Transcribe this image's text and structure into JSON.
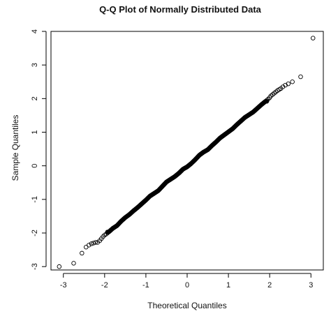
{
  "chart_data": {
    "type": "scatter",
    "title": "Q-Q Plot of Normally Distributed Data",
    "xlabel": "Theoretical Quantiles",
    "ylabel": "Sample Quantiles",
    "xlim": [
      -3.3,
      3.3
    ],
    "ylim": [
      -3.1,
      4.0
    ],
    "xticks": [
      -3,
      -2,
      -1,
      0,
      1,
      2,
      3
    ],
    "yticks": [
      -3,
      -2,
      -1,
      0,
      1,
      2,
      3,
      4
    ],
    "xtick_labels": [
      "-3",
      "-2",
      "-1",
      "0",
      "1",
      "2",
      "3"
    ],
    "ytick_labels": [
      "-3",
      "-2",
      "-1",
      "0",
      "1",
      "2",
      "3",
      "4"
    ],
    "grid": false,
    "legend": "none",
    "marker": "open-circle",
    "colors": {
      "marker": "#000000",
      "axis": "#000000",
      "background": "#ffffff"
    },
    "tail_points": [
      [
        -3.1,
        -3.0
      ],
      [
        -2.75,
        -2.9
      ],
      [
        -2.55,
        -2.6
      ],
      [
        -2.45,
        -2.42
      ],
      [
        -2.38,
        -2.36
      ],
      [
        -2.32,
        -2.32
      ],
      [
        -2.27,
        -2.3
      ],
      [
        -2.22,
        -2.28
      ],
      [
        -2.17,
        -2.28
      ],
      [
        -2.12,
        -2.23
      ],
      [
        -2.08,
        -2.17
      ],
      [
        -2.04,
        -2.11
      ],
      [
        -2.0,
        -2.06
      ],
      [
        -1.96,
        -2.03
      ],
      [
        -1.93,
        -2.0
      ],
      [
        1.93,
        1.95
      ],
      [
        1.96,
        1.98
      ],
      [
        2.0,
        2.03
      ],
      [
        2.03,
        2.08
      ],
      [
        2.07,
        2.12
      ],
      [
        2.11,
        2.16
      ],
      [
        2.15,
        2.2
      ],
      [
        2.19,
        2.24
      ],
      [
        2.23,
        2.27
      ],
      [
        2.27,
        2.3
      ],
      [
        2.32,
        2.35
      ],
      [
        2.38,
        2.4
      ],
      [
        2.45,
        2.44
      ],
      [
        2.55,
        2.5
      ],
      [
        2.75,
        2.65
      ],
      [
        3.05,
        3.8
      ]
    ],
    "body_points": [
      [
        -1.9,
        -1.97
      ],
      [
        -1.8,
        -1.86
      ],
      [
        -1.7,
        -1.78
      ],
      [
        -1.6,
        -1.65
      ],
      [
        -1.5,
        -1.54
      ],
      [
        -1.4,
        -1.45
      ],
      [
        -1.3,
        -1.34
      ],
      [
        -1.2,
        -1.24
      ],
      [
        -1.1,
        -1.13
      ],
      [
        -1.0,
        -1.02
      ],
      [
        -0.9,
        -0.9
      ],
      [
        -0.8,
        -0.82
      ],
      [
        -0.7,
        -0.74
      ],
      [
        -0.6,
        -0.61
      ],
      [
        -0.5,
        -0.48
      ],
      [
        -0.4,
        -0.4
      ],
      [
        -0.3,
        -0.32
      ],
      [
        -0.2,
        -0.22
      ],
      [
        -0.1,
        -0.1
      ],
      [
        0.0,
        -0.03
      ],
      [
        0.1,
        0.07
      ],
      [
        0.2,
        0.19
      ],
      [
        0.3,
        0.32
      ],
      [
        0.4,
        0.41
      ],
      [
        0.5,
        0.48
      ],
      [
        0.6,
        0.6
      ],
      [
        0.7,
        0.71
      ],
      [
        0.8,
        0.83
      ],
      [
        0.9,
        0.92
      ],
      [
        1.0,
        1.01
      ],
      [
        1.1,
        1.1
      ],
      [
        1.2,
        1.22
      ],
      [
        1.3,
        1.33
      ],
      [
        1.4,
        1.44
      ],
      [
        1.5,
        1.52
      ],
      [
        1.6,
        1.6
      ],
      [
        1.7,
        1.71
      ],
      [
        1.8,
        1.82
      ],
      [
        1.9,
        1.92
      ]
    ],
    "dense_x_range": [
      -1.93,
      1.93
    ],
    "dense_count": 450
  }
}
